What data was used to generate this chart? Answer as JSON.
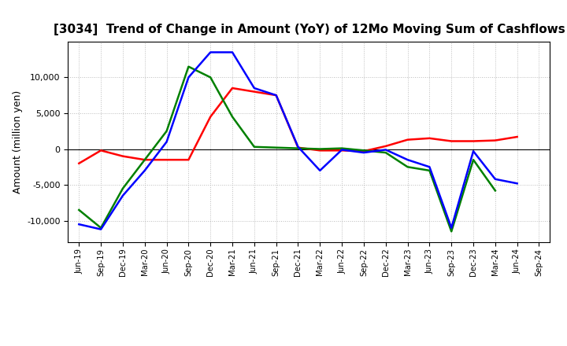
{
  "title": "[3034]  Trend of Change in Amount (YoY) of 12Mo Moving Sum of Cashflows",
  "ylabel": "Amount (million yen)",
  "labels": [
    "Jun-19",
    "Sep-19",
    "Dec-19",
    "Mar-20",
    "Jun-20",
    "Sep-20",
    "Dec-20",
    "Mar-21",
    "Jun-21",
    "Sep-21",
    "Dec-21",
    "Mar-22",
    "Jun-22",
    "Sep-22",
    "Dec-22",
    "Mar-23",
    "Jun-23",
    "Sep-23",
    "Dec-23",
    "Mar-24",
    "Jun-24",
    "Sep-24"
  ],
  "operating": [
    -2000,
    -200,
    -1000,
    -1500,
    -1500,
    -1500,
    4500,
    8500,
    8000,
    7500,
    200,
    -200,
    -200,
    -300,
    400,
    1300,
    1500,
    1100,
    1100,
    1200,
    1700,
    null
  ],
  "investing": [
    -8500,
    -11000,
    -5500,
    -1500,
    2500,
    11500,
    10000,
    4500,
    300,
    200,
    100,
    0,
    100,
    -200,
    -500,
    -2500,
    -3000,
    -11500,
    -1500,
    -5800,
    null,
    null
  ],
  "free": [
    -10500,
    -11200,
    -6500,
    -3000,
    1000,
    10000,
    13500,
    13500,
    8500,
    7500,
    300,
    -3000,
    -100,
    -500,
    -100,
    -1500,
    -2500,
    -11000,
    -300,
    -4200,
    -4800,
    null
  ],
  "operating_color": "#ff0000",
  "investing_color": "#008000",
  "free_color": "#0000ff",
  "ylim": [
    -13000,
    15000
  ],
  "yticks": [
    -10000,
    -5000,
    0,
    5000,
    10000
  ],
  "background_color": "#ffffff",
  "grid_color": "#bbbbbb"
}
